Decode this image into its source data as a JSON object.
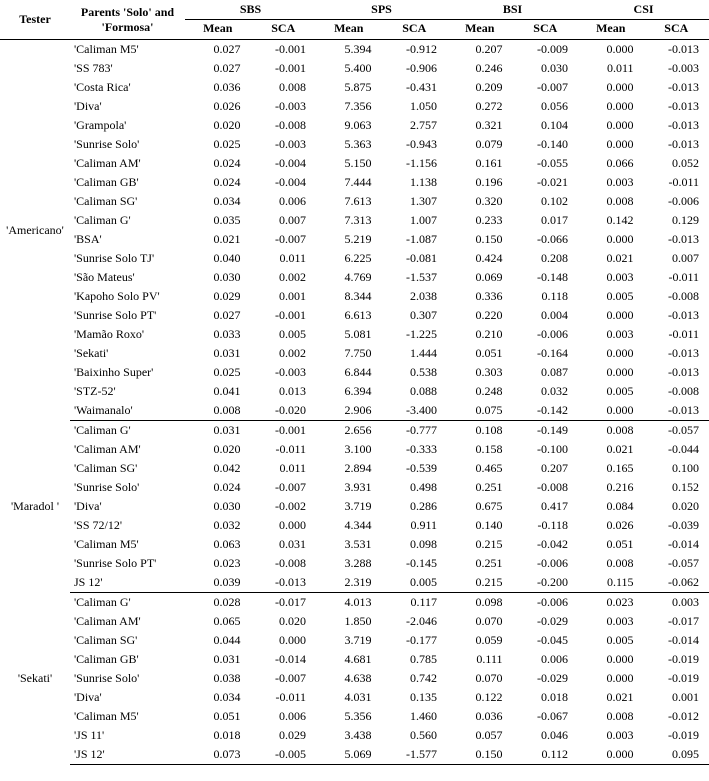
{
  "header": {
    "tester": "Tester",
    "parents": "Parents 'Solo' and 'Formosa'",
    "groups": [
      "SBS",
      "SPS",
      "BSI",
      "CSI"
    ],
    "subs": [
      "Mean",
      "SCA"
    ]
  },
  "font_family": "Times New Roman",
  "font_size_pt": 9,
  "colors": {
    "text": "#000000",
    "bg": "#ffffff",
    "rule": "#000000"
  },
  "decimals": 3,
  "groups": [
    {
      "tester": "'Americano'",
      "rows": [
        {
          "p": "'Caliman M5'",
          "v": [
            0.027,
            -0.001,
            5.394,
            -0.912,
            0.207,
            -0.009,
            0.0,
            -0.013
          ]
        },
        {
          "p": "'SS 783'",
          "v": [
            0.027,
            -0.001,
            5.4,
            -0.906,
            0.246,
            0.03,
            0.011,
            -0.003
          ]
        },
        {
          "p": "'Costa Rica'",
          "v": [
            0.036,
            0.008,
            5.875,
            -0.431,
            0.209,
            -0.007,
            0.0,
            -0.013
          ]
        },
        {
          "p": "'Diva'",
          "v": [
            0.026,
            -0.003,
            7.356,
            1.05,
            0.272,
            0.056,
            0.0,
            -0.013
          ]
        },
        {
          "p": "'Grampola'",
          "v": [
            0.02,
            -0.008,
            9.063,
            2.757,
            0.321,
            0.104,
            0.0,
            -0.013
          ]
        },
        {
          "p": "'Sunrise Solo'",
          "v": [
            0.025,
            -0.003,
            5.363,
            -0.943,
            0.079,
            -0.14,
            0.0,
            -0.013
          ]
        },
        {
          "p": "'Caliman AM'",
          "v": [
            0.024,
            -0.004,
            5.15,
            -1.156,
            0.161,
            -0.055,
            0.066,
            0.052
          ]
        },
        {
          "p": "'Caliman GB'",
          "v": [
            0.024,
            -0.004,
            7.444,
            1.138,
            0.196,
            -0.021,
            0.003,
            -0.011
          ]
        },
        {
          "p": "'Caliman SG'",
          "v": [
            0.034,
            0.006,
            7.613,
            1.307,
            0.32,
            0.102,
            0.008,
            -0.006
          ]
        },
        {
          "p": "'Caliman G'",
          "v": [
            0.035,
            0.007,
            7.313,
            1.007,
            0.233,
            0.017,
            0.142,
            0.129
          ]
        },
        {
          "p": "'BSA'",
          "v": [
            0.021,
            -0.007,
            5.219,
            -1.087,
            0.15,
            -0.066,
            0.0,
            -0.013
          ]
        },
        {
          "p": "'Sunrise Solo TJ'",
          "v": [
            0.04,
            0.011,
            6.225,
            -0.081,
            0.424,
            0.208,
            0.021,
            0.007
          ]
        },
        {
          "p": "'São Mateus'",
          "v": [
            0.03,
            0.002,
            4.769,
            -1.537,
            0.069,
            -0.148,
            0.003,
            -0.011
          ]
        },
        {
          "p": "'Kapoho Solo PV'",
          "v": [
            0.029,
            0.001,
            8.344,
            2.038,
            0.336,
            0.118,
            0.005,
            -0.008
          ]
        },
        {
          "p": "'Sunrise Solo PT'",
          "v": [
            0.027,
            -0.001,
            6.613,
            0.307,
            0.22,
            0.004,
            0.0,
            -0.013
          ]
        },
        {
          "p": "'Mamão Roxo'",
          "v": [
            0.033,
            0.005,
            5.081,
            -1.225,
            0.21,
            -0.006,
            0.003,
            -0.011
          ]
        },
        {
          "p": "'Sekati'",
          "v": [
            0.031,
            0.002,
            7.75,
            1.444,
            0.051,
            -0.164,
            0.0,
            -0.013
          ]
        },
        {
          "p": "'Baixinho Super'",
          "v": [
            0.025,
            -0.003,
            6.844,
            0.538,
            0.303,
            0.087,
            0.0,
            -0.013
          ]
        },
        {
          "p": "'STZ-52'",
          "v": [
            0.041,
            0.013,
            6.394,
            0.088,
            0.248,
            0.032,
            0.005,
            -0.008
          ]
        },
        {
          "p": "'Waimanalo'",
          "v": [
            0.008,
            -0.02,
            2.906,
            -3.4,
            0.075,
            -0.142,
            0.0,
            -0.013
          ]
        }
      ]
    },
    {
      "tester": "'Maradol '",
      "rows": [
        {
          "p": "'Caliman G'",
          "v": [
            0.031,
            -0.001,
            2.656,
            -0.777,
            0.108,
            -0.149,
            0.008,
            -0.057
          ]
        },
        {
          "p": "'Caliman AM'",
          "v": [
            0.02,
            -0.011,
            3.1,
            -0.333,
            0.158,
            -0.1,
            0.021,
            -0.044
          ]
        },
        {
          "p": "'Caliman SG'",
          "v": [
            0.042,
            0.011,
            2.894,
            -0.539,
            0.465,
            0.207,
            0.165,
            0.1
          ]
        },
        {
          "p": "'Sunrise Solo'",
          "v": [
            0.024,
            -0.007,
            3.931,
            0.498,
            0.251,
            -0.008,
            0.216,
            0.152
          ]
        },
        {
          "p": "'Diva'",
          "v": [
            0.03,
            -0.002,
            3.719,
            0.286,
            0.675,
            0.417,
            0.084,
            0.02
          ]
        },
        {
          "p": "'SS 72/12'",
          "v": [
            0.032,
            0.0,
            4.344,
            0.911,
            0.14,
            -0.118,
            0.026,
            -0.039
          ]
        },
        {
          "p": "'Caliman M5'",
          "v": [
            0.063,
            0.031,
            3.531,
            0.098,
            0.215,
            -0.042,
            0.051,
            -0.014
          ]
        },
        {
          "p": "'Sunrise Solo PT'",
          "v": [
            0.023,
            -0.008,
            3.288,
            -0.145,
            0.251,
            -0.006,
            0.008,
            -0.057
          ]
        },
        {
          "p": "JS 12'",
          "v": [
            0.039,
            -0.013,
            2.319,
            0.005,
            0.215,
            -0.2,
            0.115,
            -0.062
          ]
        }
      ]
    },
    {
      "tester": "'Sekati'",
      "rows": [
        {
          "p": "'Caliman G'",
          "v": [
            0.028,
            -0.017,
            4.013,
            0.117,
            0.098,
            -0.006,
            0.023,
            0.003
          ]
        },
        {
          "p": "'Caliman AM'",
          "v": [
            0.065,
            0.02,
            1.85,
            -2.046,
            0.07,
            -0.029,
            0.003,
            -0.017
          ]
        },
        {
          "p": "'Caliman SG'",
          "v": [
            0.044,
            0.0,
            3.719,
            -0.177,
            0.059,
            -0.045,
            0.005,
            -0.014
          ]
        },
        {
          "p": "'Caliman GB'",
          "v": [
            0.031,
            -0.014,
            4.681,
            0.785,
            0.111,
            0.006,
            0.0,
            -0.019
          ]
        },
        {
          "p": "'Sunrise Solo'",
          "v": [
            0.038,
            -0.007,
            4.638,
            0.742,
            0.07,
            -0.029,
            0.0,
            -0.019
          ]
        },
        {
          "p": "'Diva'",
          "v": [
            0.034,
            -0.011,
            4.031,
            0.135,
            0.122,
            0.018,
            0.021,
            0.001
          ]
        },
        {
          "p": "'Caliman M5'",
          "v": [
            0.051,
            0.006,
            5.356,
            1.46,
            0.036,
            -0.067,
            0.008,
            -0.012
          ]
        },
        {
          "p": "'JS 11'",
          "v": [
            0.018,
            0.029,
            3.438,
            0.56,
            0.057,
            0.046,
            0.003,
            -0.019
          ]
        },
        {
          "p": "'JS 12'",
          "v": [
            0.073,
            -0.005,
            5.069,
            -1.577,
            0.15,
            0.112,
            0.0,
            0.095
          ]
        }
      ]
    }
  ]
}
